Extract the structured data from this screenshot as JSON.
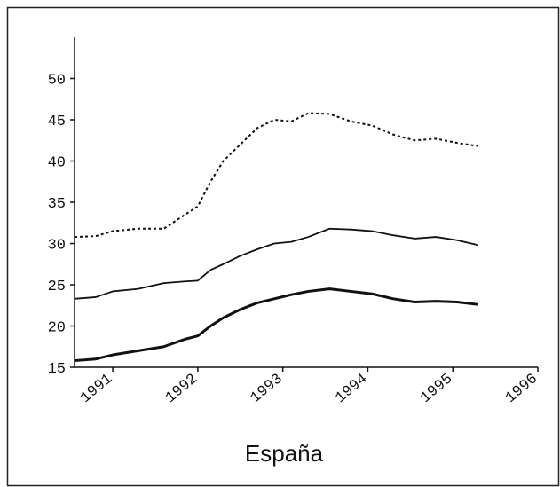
{
  "chart_data": {
    "type": "line",
    "title": "España",
    "x": [
      1990.55,
      1990.8,
      1991,
      1991.3,
      1991.6,
      1991.85,
      1992,
      1992.15,
      1992.3,
      1992.5,
      1992.7,
      1992.9,
      1993.1,
      1993.3,
      1993.55,
      1993.8,
      1994.05,
      1994.3,
      1994.55,
      1994.8,
      1995.05,
      1995.3
    ],
    "series": [
      {
        "color": "#111111",
        "line_style": "dotted",
        "values": [
          30.8,
          30.9,
          31.5,
          31.8,
          31.8,
          33.5,
          34.5,
          37.5,
          40,
          42,
          44,
          45,
          44.8,
          45.8,
          45.7,
          44.8,
          44.3,
          43.2,
          42.5,
          42.7,
          42.2,
          41.8
        ]
      },
      {
        "color": "#111111",
        "line_style": "solid",
        "values": [
          23.3,
          23.5,
          24.2,
          24.5,
          25.2,
          25.4,
          25.5,
          26.8,
          27.5,
          28.5,
          29.3,
          30,
          30.2,
          30.8,
          31.8,
          31.7,
          31.5,
          31,
          30.6,
          30.8,
          30.4,
          29.8
        ]
      },
      {
        "color": "#111111",
        "line_style": "bold",
        "values": [
          15.8,
          16,
          16.5,
          17,
          17.5,
          18.4,
          18.8,
          20,
          21,
          22,
          22.8,
          23.3,
          23.8,
          24.2,
          24.5,
          24.2,
          23.9,
          23.3,
          22.9,
          23,
          22.9,
          22.6
        ]
      }
    ],
    "xlim": [
      1990.55,
      1996
    ],
    "xticks": [
      1991,
      1992,
      1993,
      1994,
      1995,
      1996
    ],
    "ylim": [
      15,
      55
    ],
    "yticks": [
      15,
      20,
      25,
      30,
      35,
      40,
      45,
      50
    ]
  }
}
